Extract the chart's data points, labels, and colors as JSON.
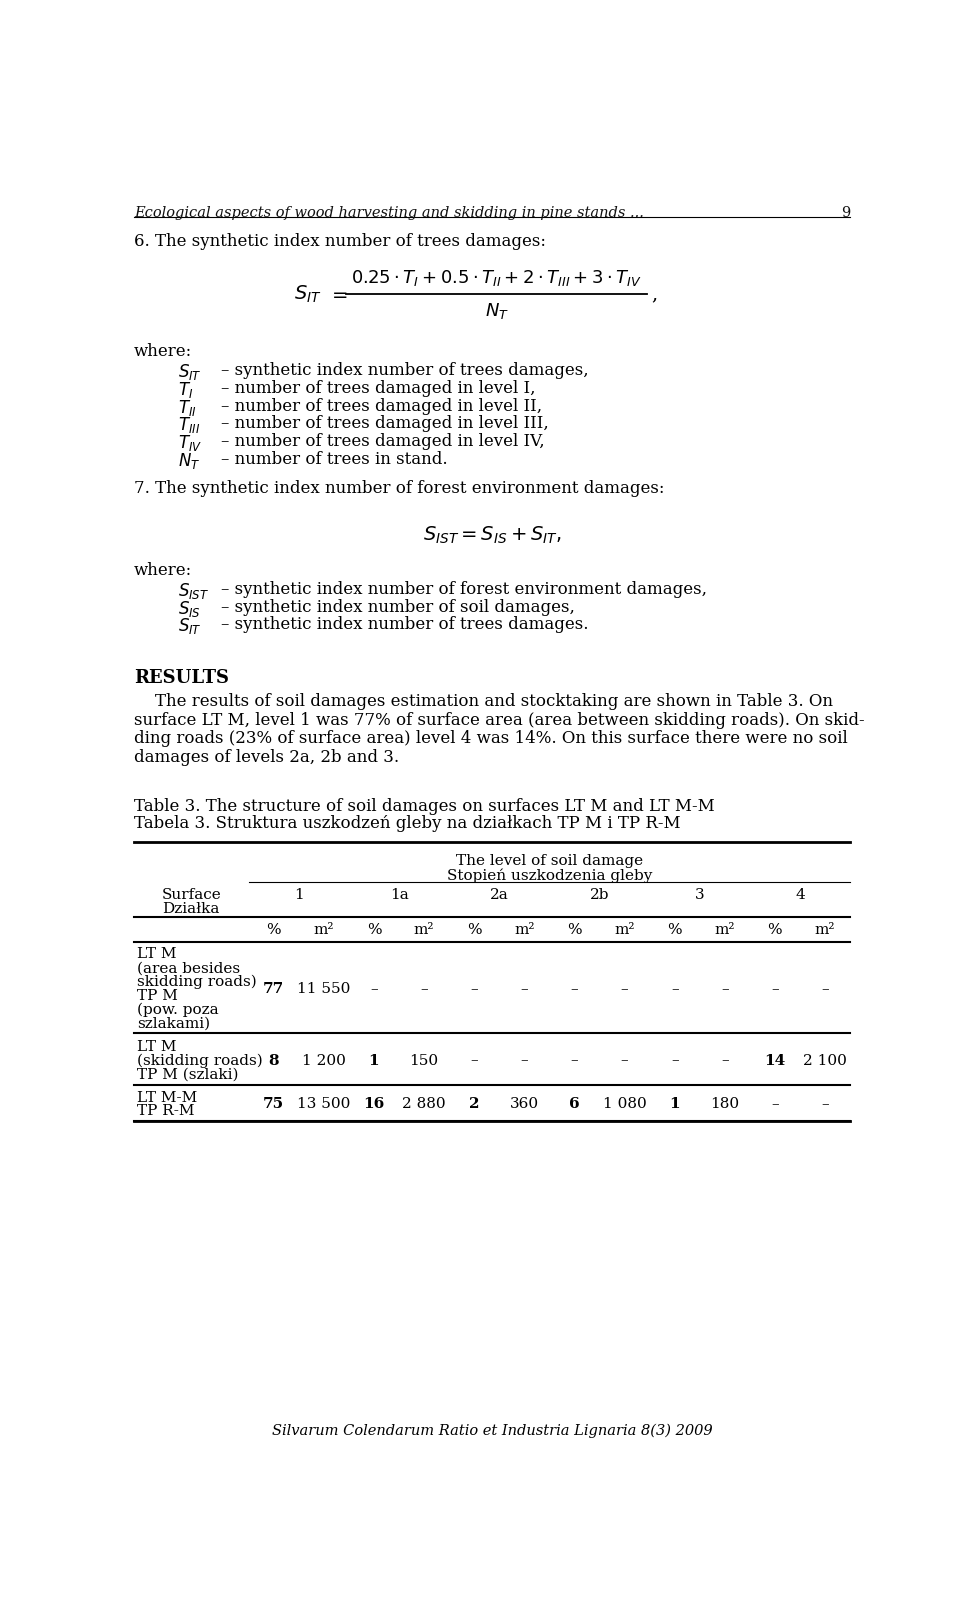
{
  "bg_color": "#ffffff",
  "header_italic": "Ecological aspects of wood harvesting and skidding in pine stands ...",
  "page_num": "9",
  "section6_title": "6. The synthetic index number of trees damages:",
  "where1": "where:",
  "where1_items": [
    [
      "S_{IT}",
      "synthetic index number of trees damages,"
    ],
    [
      "T_{I}",
      "number of trees damaged in level I,"
    ],
    [
      "T_{II}",
      "number of trees damaged in level II,"
    ],
    [
      "T_{III}",
      "number of trees damaged in level III,"
    ],
    [
      "T_{IV}",
      "number of trees damaged in level IV,"
    ],
    [
      "N_{T}",
      "number of trees in stand."
    ]
  ],
  "section7_title": "7. The synthetic index number of forest environment damages:",
  "where2": "where:",
  "where2_items": [
    [
      "S_{IST}",
      "synthetic index number of forest environment damages,"
    ],
    [
      "S_{IS}",
      "synthetic index number of soil damages,"
    ],
    [
      "S_{IT}",
      "synthetic index number of trees damages."
    ]
  ],
  "results_title": "RESULTS",
  "results_lines": [
    "    The results of soil damages estimation and stocktaking are shown in Table 3. On",
    "surface LT M, level 1 was 77% of surface area (area between skidding roads). On skid-",
    "ding roads (23% of surface area) level 4 was 14%. On this surface there were no soil",
    "damages of levels 2a, 2b and 3."
  ],
  "table_title1": "Table 3. The structure of soil damages on surfaces LT M and LT M-M",
  "table_title2": "Tabela 3. Struktura uszkodzeń gleby na działkach TP M i TP R-M",
  "table_header1": "The level of soil damage",
  "table_header2": "Stopień uszkodzenia gleby",
  "table_col_surface": "Surface",
  "table_col_dzialka": "Działka",
  "table_levels": [
    "1",
    "1a",
    "2a",
    "2b",
    "3",
    "4"
  ],
  "table_subheaders": [
    "%",
    "m²",
    "%",
    "m²",
    "%",
    "m²",
    "%",
    "m²",
    "%",
    "m²",
    "%",
    "m²"
  ],
  "table_rows": [
    {
      "surface_lines": [
        "LT M",
        "(area besides",
        "skidding roads)",
        "TP M",
        "(pow. poza",
        "szlakami)"
      ],
      "data": [
        "77",
        "11 550",
        "–",
        "–",
        "–",
        "–",
        "–",
        "–",
        "–",
        "–",
        "–",
        "–"
      ],
      "bold_indices": [
        0
      ]
    },
    {
      "surface_lines": [
        "LT M",
        "(skidding roads)",
        "TP M (szlaki)"
      ],
      "data": [
        "8",
        "1 200",
        "1",
        "150",
        "–",
        "–",
        "–",
        "–",
        "–",
        "–",
        "14",
        "2 100"
      ],
      "bold_indices": [
        0,
        2,
        10
      ]
    },
    {
      "surface_lines": [
        "LT M-M",
        "TP R-M"
      ],
      "data": [
        "75",
        "13 500",
        "16",
        "2 880",
        "2",
        "360",
        "6",
        "1 080",
        "1",
        "180",
        "–",
        "–"
      ],
      "bold_indices": [
        0,
        2,
        4,
        6,
        8
      ]
    }
  ],
  "footer_italic": "Silvarum Colendarum Ratio et Industria Lignaria 8(3) 2009"
}
